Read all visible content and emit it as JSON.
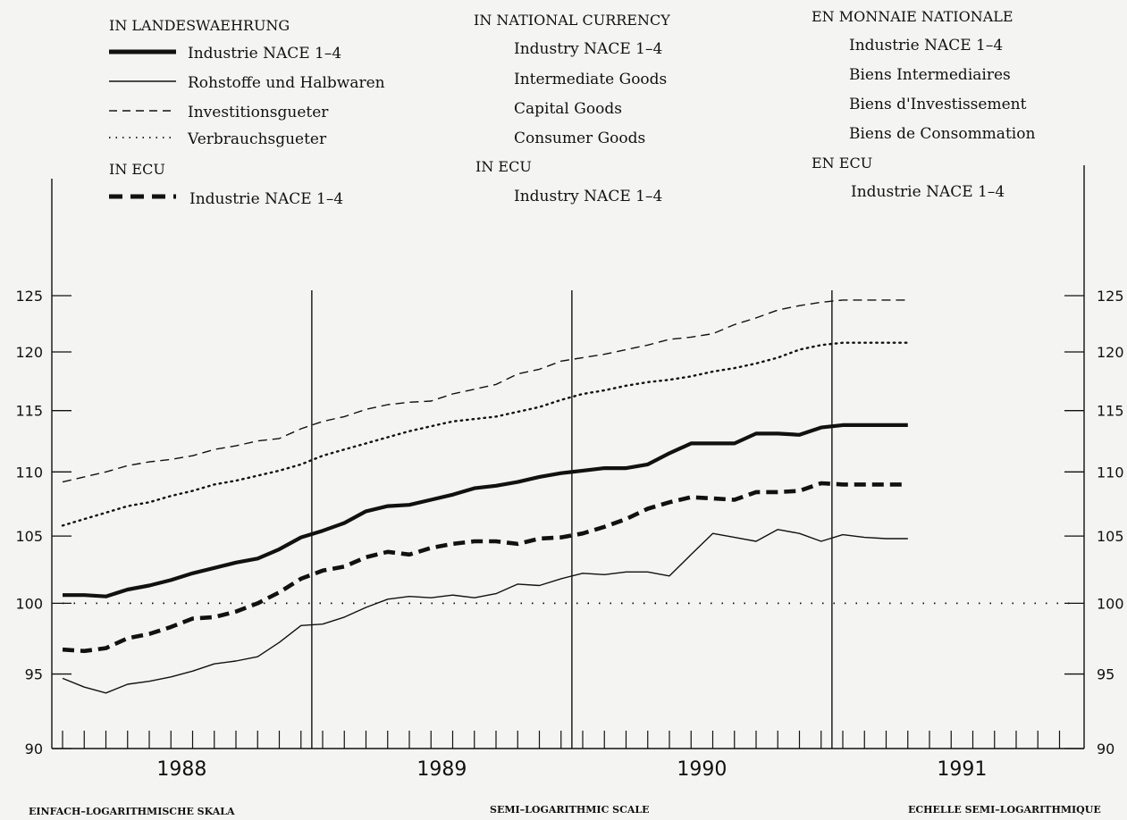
{
  "legend": {
    "de": {
      "title": "IN LANDESWAEHRUNG",
      "items": [
        "Industrie NACE 1–4",
        "Rohstoffe und Halbwaren",
        "Investitionsgueter",
        "Verbrauchsgueter"
      ],
      "ecu_title": "IN ECU",
      "ecu_item": "Industrie NACE 1–4"
    },
    "en": {
      "title": "IN NATIONAL CURRENCY",
      "items": [
        "Industry NACE 1–4",
        "Intermediate Goods",
        "Capital Goods",
        "Consumer Goods"
      ],
      "ecu_title": "IN ECU",
      "ecu_item": "Industry NACE 1–4"
    },
    "fr": {
      "title": "EN MONNAIE NATIONALE",
      "items": [
        "Industrie NACE 1–4",
        "Biens Intermediaires",
        "Biens d'Investissement",
        "Biens de Consommation"
      ],
      "ecu_title": "EN ECU",
      "ecu_item": "Industrie NACE 1–4"
    }
  },
  "scale_labels": {
    "de": "EINFACH–LOGARITHMISCHE SKALA",
    "en": "SEMI–LOGARITHMIC SCALE",
    "fr": "ECHELLE SEMI–LOGARITHMIQUE"
  },
  "chart_data": {
    "type": "line",
    "y_scale": "log",
    "ylim": [
      90,
      125
    ],
    "yticks": [
      90,
      95,
      100,
      105,
      110,
      115,
      120,
      125
    ],
    "x_tick_labels": [
      "1988",
      "1989",
      "1990",
      "1991"
    ],
    "x": [
      "1988-01",
      "1988-02",
      "1988-03",
      "1988-04",
      "1988-05",
      "1988-06",
      "1988-07",
      "1988-08",
      "1988-09",
      "1988-10",
      "1988-11",
      "1988-12",
      "1989-01",
      "1989-02",
      "1989-03",
      "1989-04",
      "1989-05",
      "1989-06",
      "1989-07",
      "1989-08",
      "1989-09",
      "1989-10",
      "1989-11",
      "1989-12",
      "1990-01",
      "1990-02",
      "1990-03",
      "1990-04",
      "1990-05",
      "1990-06",
      "1990-07",
      "1990-08",
      "1990-09",
      "1990-10",
      "1990-11",
      "1990-12",
      "1991-01",
      "1991-02",
      "1991-03",
      "1991-04"
    ],
    "reference_line": 100,
    "series": [
      {
        "name": "Industrie NACE 1–4",
        "style": "thick-solid",
        "values": [
          100.6,
          100.6,
          100.5,
          101.0,
          101.3,
          101.7,
          102.2,
          102.6,
          103.0,
          103.3,
          104.0,
          104.9,
          105.4,
          106.0,
          106.9,
          107.3,
          107.4,
          107.8,
          108.2,
          108.7,
          108.9,
          109.2,
          109.6,
          109.9,
          110.1,
          110.3,
          110.3,
          110.6,
          111.5,
          112.3,
          112.3,
          112.3,
          113.1,
          113.1,
          113.0,
          113.6,
          113.8,
          113.8,
          113.8,
          113.8
        ]
      },
      {
        "name": "Rohstoffe und Halbwaren",
        "style": "thin-solid",
        "values": [
          94.7,
          94.1,
          93.7,
          94.3,
          94.5,
          94.8,
          95.2,
          95.7,
          95.9,
          96.2,
          97.2,
          98.4,
          98.5,
          99.0,
          99.7,
          100.3,
          100.5,
          100.4,
          100.6,
          100.4,
          100.7,
          101.4,
          101.3,
          101.8,
          102.2,
          102.1,
          102.3,
          102.3,
          102.0,
          103.6,
          105.2,
          104.9,
          104.6,
          105.5,
          105.2,
          104.6,
          105.1,
          104.9,
          104.8,
          104.8
        ]
      },
      {
        "name": "Investitionsgueter",
        "style": "dashed",
        "values": [
          109.2,
          109.6,
          110.0,
          110.5,
          110.8,
          111.0,
          111.3,
          111.8,
          112.1,
          112.5,
          112.7,
          113.5,
          114.1,
          114.5,
          115.1,
          115.5,
          115.7,
          115.8,
          116.4,
          116.8,
          117.2,
          118.1,
          118.5,
          119.2,
          119.5,
          119.8,
          120.2,
          120.6,
          121.1,
          121.3,
          121.6,
          122.4,
          123.0,
          123.7,
          124.1,
          124.4,
          124.6,
          124.6,
          124.6,
          124.6
        ]
      },
      {
        "name": "Verbrauchsgueter",
        "style": "dotted",
        "values": [
          105.8,
          106.3,
          106.8,
          107.3,
          107.6,
          108.1,
          108.5,
          109.0,
          109.3,
          109.7,
          110.1,
          110.6,
          111.3,
          111.8,
          112.3,
          112.8,
          113.3,
          113.7,
          114.1,
          114.3,
          114.5,
          114.9,
          115.3,
          115.9,
          116.4,
          116.7,
          117.1,
          117.4,
          117.6,
          117.9,
          118.3,
          118.6,
          119.0,
          119.5,
          120.2,
          120.6,
          120.8,
          120.8,
          120.8,
          120.8
        ]
      },
      {
        "name": "Industrie NACE 1–4 (ECU)",
        "style": "thick-dashed",
        "values": [
          96.7,
          96.6,
          96.8,
          97.5,
          97.8,
          98.3,
          98.9,
          99.0,
          99.4,
          100.0,
          100.8,
          101.8,
          102.4,
          102.7,
          103.4,
          103.8,
          103.6,
          104.1,
          104.4,
          104.6,
          104.6,
          104.4,
          104.8,
          104.9,
          105.2,
          105.7,
          106.3,
          107.1,
          107.6,
          108.0,
          107.9,
          107.8,
          108.4,
          108.4,
          108.5,
          109.1,
          109.0,
          109.0,
          109.0,
          109.0
        ]
      }
    ]
  }
}
